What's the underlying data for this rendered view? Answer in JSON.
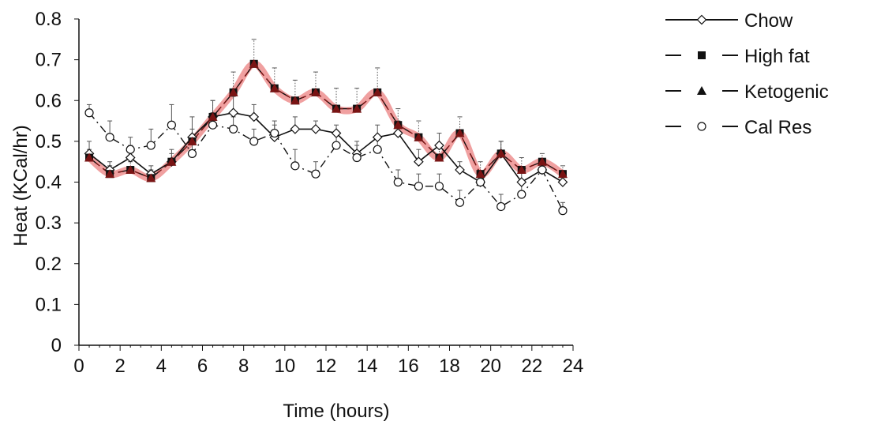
{
  "chart_data": {
    "type": "line",
    "title": "",
    "xlabel": "Time (hours)",
    "ylabel": "Heat (KCal/hr)",
    "xlim": [
      0,
      24
    ],
    "ylim": [
      0,
      0.8
    ],
    "x_ticks": [
      "0",
      "2",
      "4",
      "6",
      "8",
      "10",
      "12",
      "14",
      "16",
      "18",
      "20",
      "22",
      "24"
    ],
    "y_ticks": [
      "0",
      "0.1",
      "0.2",
      "0.3",
      "0.4",
      "0.5",
      "0.6",
      "0.7",
      "0.8"
    ],
    "grid": false,
    "legend_position": "top-right",
    "x": [
      0.5,
      1.5,
      2.5,
      3.5,
      4.5,
      5.5,
      6.5,
      7.5,
      8.5,
      9.5,
      10.5,
      11.5,
      12.5,
      13.5,
      14.5,
      15.5,
      16.5,
      17.5,
      18.5,
      19.5,
      20.5,
      21.5,
      22.5,
      23.5
    ],
    "series": [
      {
        "name": "Chow",
        "marker": "diamond-open",
        "dash": "solid",
        "color": "#111111",
        "values": [
          0.47,
          0.43,
          0.46,
          0.42,
          0.45,
          0.51,
          0.56,
          0.57,
          0.56,
          0.51,
          0.53,
          0.53,
          0.52,
          0.47,
          0.51,
          0.52,
          0.45,
          0.49,
          0.43,
          0.4,
          0.47,
          0.4,
          0.43,
          0.4
        ],
        "error": [
          0.03,
          0.02,
          0.03,
          0.02,
          0.03,
          0.05,
          0.04,
          0.04,
          0.03,
          0.03,
          0.03,
          0.02,
          0.02,
          0.03,
          0.03,
          0.03,
          0.03,
          0.03,
          0.02,
          0.02,
          0.03,
          0.03,
          0.02,
          0.02
        ]
      },
      {
        "name": "High fat",
        "marker": "square-filled",
        "dash": "long-dash",
        "color": "#111111",
        "values": [
          0.46,
          0.42,
          0.43,
          0.41,
          0.45,
          0.5,
          0.56,
          0.62,
          0.69,
          0.63,
          0.6,
          0.62,
          0.58,
          0.58,
          0.62,
          0.54,
          0.51,
          0.46,
          0.52,
          0.42,
          0.47,
          0.43,
          0.45,
          0.42
        ],
        "error": [
          0.02,
          0.02,
          0.02,
          0.02,
          0.02,
          0.03,
          0.04,
          0.05,
          0.06,
          0.05,
          0.05,
          0.05,
          0.05,
          0.05,
          0.06,
          0.04,
          0.04,
          0.03,
          0.04,
          0.03,
          0.03,
          0.03,
          0.02,
          0.02
        ]
      },
      {
        "name": "Ketogenic",
        "marker": "triangle-filled",
        "dash": "short-dash",
        "color": "#7a1414",
        "values": [
          0.46,
          0.42,
          0.43,
          0.41,
          0.45,
          0.5,
          0.56,
          0.62,
          0.69,
          0.63,
          0.6,
          0.62,
          0.58,
          0.58,
          0.62,
          0.54,
          0.51,
          0.46,
          0.52,
          0.42,
          0.47,
          0.43,
          0.45,
          0.42
        ],
        "highlight_color": "#f0a0a0"
      },
      {
        "name": "Cal Res",
        "marker": "circle-open",
        "dash": "dash-dot",
        "color": "#111111",
        "values": [
          0.57,
          0.51,
          0.48,
          0.49,
          0.54,
          0.47,
          0.54,
          0.53,
          0.5,
          0.52,
          0.44,
          0.42,
          0.49,
          0.46,
          0.48,
          0.4,
          0.39,
          0.39,
          0.35,
          0.4,
          0.34,
          0.37,
          0.43,
          0.33
        ],
        "error": [
          0.02,
          0.04,
          0.03,
          0.04,
          0.05,
          0.03,
          0.03,
          0.03,
          0.03,
          0.03,
          0.04,
          0.03,
          0.03,
          0.03,
          0.03,
          0.03,
          0.03,
          0.03,
          0.03,
          0.02,
          0.03,
          0.03,
          0.02,
          0.02
        ]
      }
    ]
  }
}
